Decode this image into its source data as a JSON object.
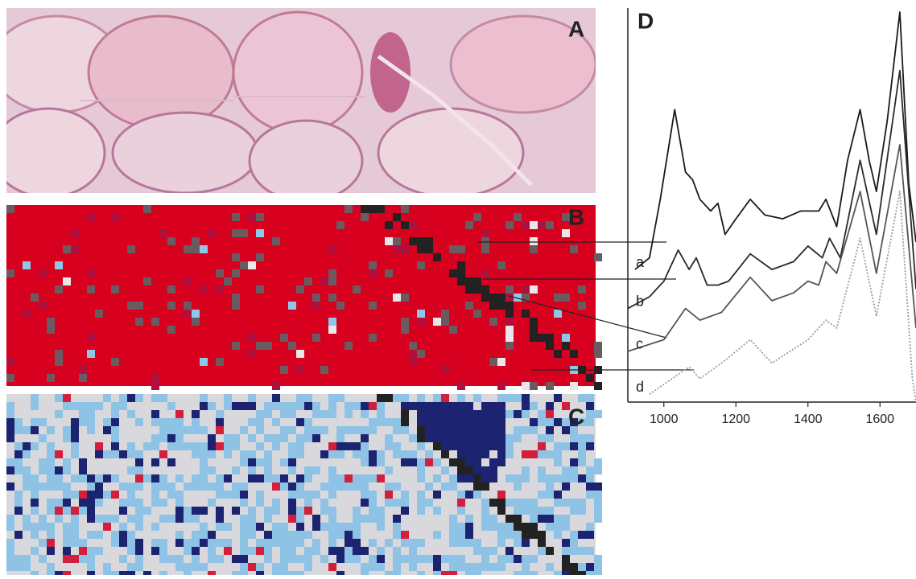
{
  "figure": {
    "panel_labels": [
      "A",
      "B",
      "C"
    ]
  },
  "chart_data": {
    "type": "line",
    "title": "D",
    "xlim": [
      900,
      1700
    ],
    "xticks": [
      1000,
      1200,
      1400,
      1600
    ],
    "ylim": [
      0,
      100
    ],
    "series": [
      {
        "name": "a",
        "color": "#1a1a1a",
        "dash": false,
        "x": [
          920,
          960,
          990,
          1030,
          1060,
          1080,
          1100,
          1130,
          1150,
          1170,
          1200,
          1240,
          1280,
          1330,
          1380,
          1400,
          1430,
          1450,
          1480,
          1510,
          1545,
          1570,
          1590,
          1620,
          1655,
          1680,
          1700
        ],
        "values": [
          34,
          37,
          52,
          75,
          59,
          57,
          52,
          49,
          51,
          43,
          47,
          52,
          48,
          47,
          49,
          49,
          49,
          52,
          45,
          62,
          75,
          62,
          54,
          72,
          100,
          56,
          41
        ]
      },
      {
        "name": "b",
        "color": "#2a2a2a",
        "dash": false,
        "x": [
          900,
          960,
          1000,
          1040,
          1070,
          1090,
          1120,
          1150,
          1180,
          1240,
          1300,
          1360,
          1400,
          1440,
          1460,
          1490,
          1545,
          1590,
          1655,
          1700
        ],
        "values": [
          24,
          27,
          31,
          39,
          34,
          37,
          30,
          30,
          31,
          38,
          34,
          36,
          40,
          37,
          42,
          37,
          62,
          43,
          85,
          29
        ]
      },
      {
        "name": "c",
        "color": "#555555",
        "dash": false,
        "x": [
          900,
          1000,
          1060,
          1100,
          1160,
          1240,
          1300,
          1360,
          1400,
          1430,
          1450,
          1480,
          1545,
          1590,
          1655,
          1700
        ],
        "values": [
          13,
          16,
          24,
          21,
          23,
          32,
          26,
          28,
          31,
          30,
          36,
          33,
          54,
          33,
          66,
          19
        ]
      },
      {
        "name": "d",
        "color": "#9a9aaa",
        "dash": true,
        "x": [
          960,
          1070,
          1100,
          1160,
          1240,
          1300,
          1400,
          1450,
          1480,
          1545,
          1590,
          1655,
          1690,
          1700
        ],
        "values": [
          2,
          9,
          6,
          10,
          16,
          10,
          16,
          21,
          19,
          42,
          22,
          54,
          6,
          0
        ]
      }
    ]
  }
}
